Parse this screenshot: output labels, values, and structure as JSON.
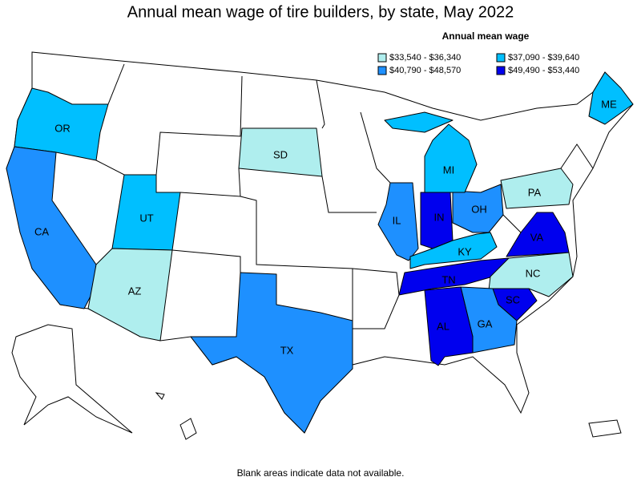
{
  "title": "Annual mean wage of tire builders, by state, May 2022",
  "legend": {
    "title": "Annual mean wage",
    "items": [
      {
        "label": "$33,540 - $36,340",
        "color": "#afeeee"
      },
      {
        "label": "$37,090 - $39,640",
        "color": "#00bfff"
      },
      {
        "label": "$40,790 - $48,570",
        "color": "#1e90ff"
      },
      {
        "label": "$49,490 - $53,440",
        "color": "#0000ee"
      }
    ]
  },
  "states": [
    {
      "abbr": "OR",
      "color": "#00bfff"
    },
    {
      "abbr": "CA",
      "color": "#1e90ff"
    },
    {
      "abbr": "UT",
      "color": "#00bfff"
    },
    {
      "abbr": "AZ",
      "color": "#afeeee"
    },
    {
      "abbr": "SD",
      "color": "#afeeee"
    },
    {
      "abbr": "TX",
      "color": "#1e90ff"
    },
    {
      "abbr": "IL",
      "color": "#1e90ff"
    },
    {
      "abbr": "IN",
      "color": "#0000ee"
    },
    {
      "abbr": "OH",
      "color": "#1e90ff"
    },
    {
      "abbr": "MI",
      "color": "#00bfff"
    },
    {
      "abbr": "KY",
      "color": "#00bfff"
    },
    {
      "abbr": "TN",
      "color": "#0000ee"
    },
    {
      "abbr": "PA",
      "color": "#afeeee"
    },
    {
      "abbr": "VA",
      "color": "#0000ee"
    },
    {
      "abbr": "NC",
      "color": "#afeeee"
    },
    {
      "abbr": "SC",
      "color": "#0000ee"
    },
    {
      "abbr": "GA",
      "color": "#1e90ff"
    },
    {
      "abbr": "AL",
      "color": "#0000ee"
    },
    {
      "abbr": "ME",
      "color": "#00bfff"
    }
  ],
  "footnote": "Blank areas indicate data not available."
}
